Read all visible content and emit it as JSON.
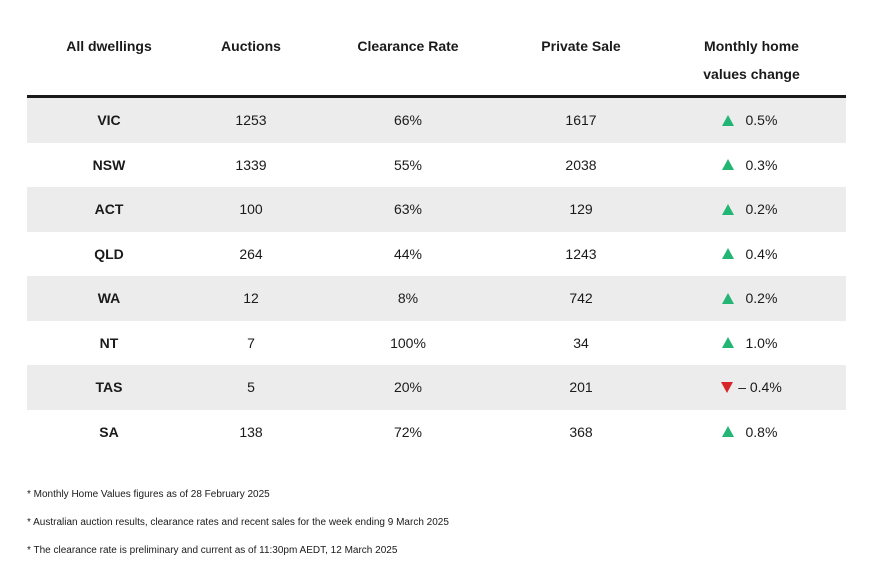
{
  "headers": {
    "col1": "All dwellings",
    "col2": "Auctions",
    "col3": "Clearance Rate",
    "col4": "Private Sale",
    "col5_line1": "Monthly home",
    "col5_line2": "values change"
  },
  "rows": [
    {
      "state": "VIC",
      "auctions": "1253",
      "clearance": "66%",
      "private": "1617",
      "direction": "up",
      "change": "0.5%"
    },
    {
      "state": "NSW",
      "auctions": "1339",
      "clearance": "55%",
      "private": "2038",
      "direction": "up",
      "change": "0.3%"
    },
    {
      "state": "ACT",
      "auctions": "100",
      "clearance": "63%",
      "private": "129",
      "direction": "up",
      "change": "0.2%"
    },
    {
      "state": "QLD",
      "auctions": "264",
      "clearance": "44%",
      "private": "1243",
      "direction": "up",
      "change": "0.4%"
    },
    {
      "state": "WA",
      "auctions": "12",
      "clearance": "8%",
      "private": "742",
      "direction": "up",
      "change": "0.2%"
    },
    {
      "state": "NT",
      "auctions": "7",
      "clearance": "100%",
      "private": "34",
      "direction": "up",
      "change": "1.0%"
    },
    {
      "state": "TAS",
      "auctions": "5",
      "clearance": "20%",
      "private": "201",
      "direction": "down",
      "change": "– 0.4%"
    },
    {
      "state": "SA",
      "auctions": "138",
      "clearance": "72%",
      "private": "368",
      "direction": "up",
      "change": "0.8%"
    }
  ],
  "colors": {
    "up": "#22b573",
    "down": "#d7262a",
    "shade": "#ececec"
  },
  "footnotes": [
    "* Monthly Home Values figures as of 28 February 2025",
    "* Australian auction results, clearance rates and recent sales for the week ending 9 March 2025",
    "* The clearance rate is preliminary and current as of 11:30pm AEDT, 12 March 2025"
  ]
}
